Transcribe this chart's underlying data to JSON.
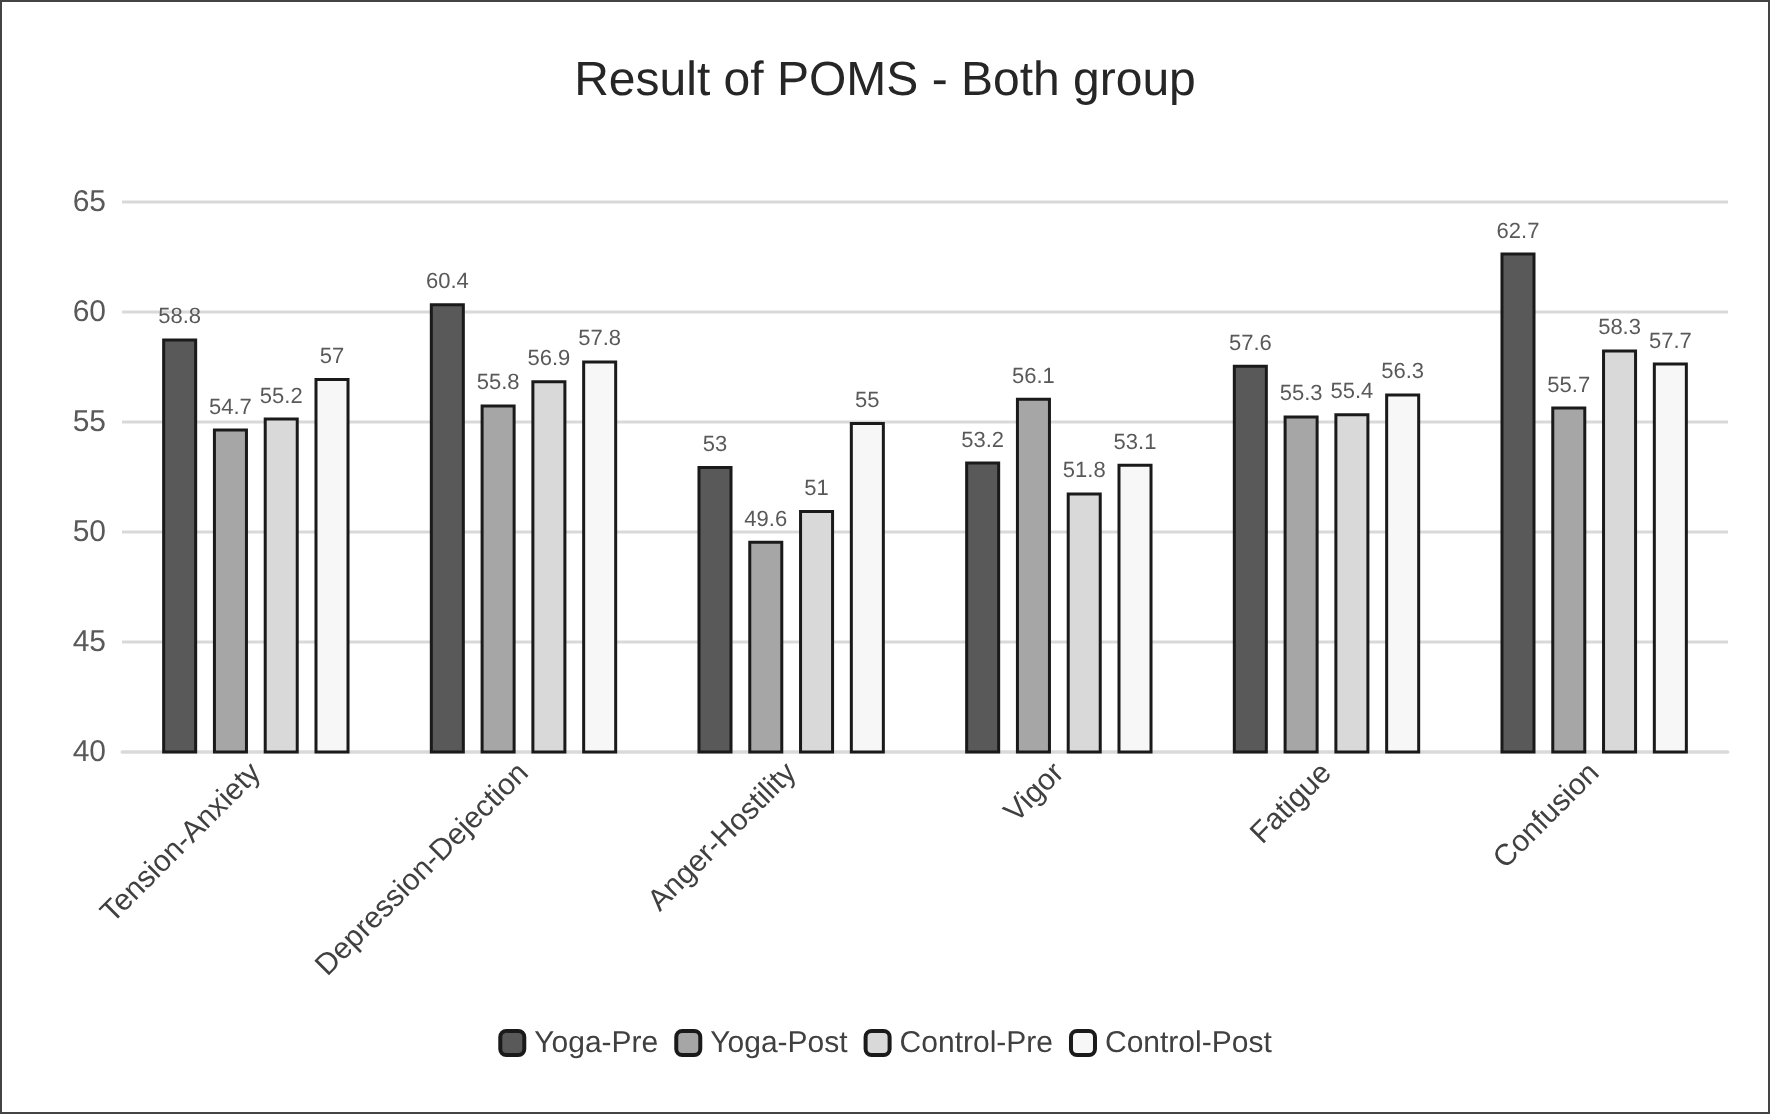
{
  "chart_data": {
    "type": "bar",
    "title": "Result of POMS - Both group",
    "categories": [
      "Tension-Anxiety",
      "Depression-Dejection",
      "Anger-Hostility",
      "Vigor",
      "Fatigue",
      "Confusion"
    ],
    "series": [
      {
        "name": "Yoga-Pre",
        "color": "#595959",
        "values": [
          58.8,
          60.4,
          53,
          53.2,
          57.6,
          62.7
        ]
      },
      {
        "name": "Yoga-Post",
        "color": "#a6a6a6",
        "values": [
          54.7,
          55.8,
          49.6,
          56.1,
          55.3,
          55.7
        ]
      },
      {
        "name": "Control-Pre",
        "color": "#d9d9d9",
        "values": [
          55.2,
          56.9,
          51,
          51.8,
          55.4,
          58.3
        ]
      },
      {
        "name": "Control-Post",
        "color": "#f7f7f7",
        "values": [
          57,
          57.8,
          55,
          53.1,
          56.3,
          57.7
        ]
      }
    ],
    "ylim": [
      40,
      65
    ],
    "yticks": [
      40,
      45,
      50,
      55,
      60,
      65
    ],
    "grid": "y",
    "legend": "bottom",
    "data_labels": true
  }
}
